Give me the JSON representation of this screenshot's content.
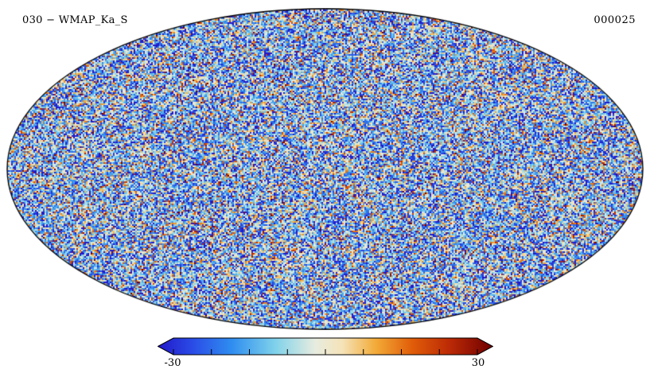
{
  "figure": {
    "title": "030 − WMAP_Ka_S",
    "frame_label": "000025"
  },
  "chart_data": {
    "type": "heatmap",
    "projection": "mollweide",
    "title": "030 − WMAP_Ka_S",
    "frame": "000025",
    "description": "Full-sky Mollweide projection of white-noise-like temperature fluctuations (predominantly blue with scattered cyan, cream, orange and red speckles) bounded by a black ellipse outline, with a horizontal arrow-ended colorbar below.",
    "colorbar": {
      "min": -30,
      "max": 30,
      "min_label": "-30",
      "max_label": "30",
      "ticks": [
        -30,
        -22.5,
        -15,
        -7.5,
        0,
        7.5,
        15,
        22.5,
        30
      ],
      "stops": [
        {
          "pos": 0.0,
          "color": "#2218c8"
        },
        {
          "pos": 0.1,
          "color": "#2a4ae6"
        },
        {
          "pos": 0.22,
          "color": "#2f8df0"
        },
        {
          "pos": 0.35,
          "color": "#7fd2ea"
        },
        {
          "pos": 0.47,
          "color": "#e8ecdf"
        },
        {
          "pos": 0.55,
          "color": "#f5e3b8"
        },
        {
          "pos": 0.65,
          "color": "#f2ab38"
        },
        {
          "pos": 0.76,
          "color": "#e05c08"
        },
        {
          "pos": 0.87,
          "color": "#bc2a06"
        },
        {
          "pos": 1.0,
          "color": "#6e0000"
        }
      ]
    },
    "noise": {
      "mean": -0.3,
      "sigma": 0.5,
      "cell": 2,
      "seed": 1337
    },
    "layout": {
      "legend": "none",
      "grid": false,
      "colorbar_position": "bottom-center"
    }
  }
}
